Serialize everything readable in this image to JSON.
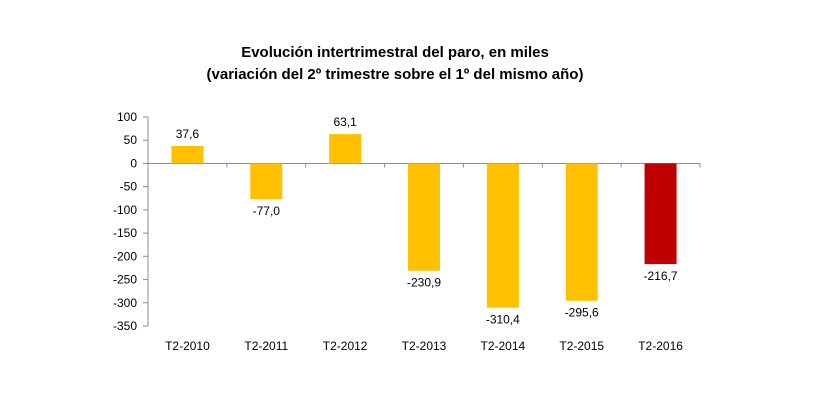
{
  "chart_data": {
    "type": "bar",
    "title": "Evolución intertrimestral del paro, en miles",
    "subtitle": "(variación del 2º trimestre  sobre el 1º del mismo año)",
    "categories": [
      "T2-2010",
      "T2-2011",
      "T2-2012",
      "T2-2013",
      "T2-2014",
      "T2-2015",
      "T2-2016"
    ],
    "values": [
      37.6,
      -77.0,
      63.1,
      -230.9,
      -310.4,
      -295.6,
      -216.7
    ],
    "value_labels": [
      "37,6",
      "-77,0",
      "63,1",
      "-230,9",
      "-310,4",
      "-295,6",
      "-216,7"
    ],
    "colors": [
      "#FFC000",
      "#FFC000",
      "#FFC000",
      "#FFC000",
      "#FFC000",
      "#FFC000",
      "#C00000"
    ],
    "xlabel": "",
    "ylabel": "",
    "ylim": [
      -350,
      100
    ],
    "yticks": [
      100,
      50,
      0,
      -50,
      -100,
      -150,
      -200,
      -250,
      -300,
      -350
    ],
    "ytick_labels": [
      "100",
      "50",
      "0",
      "-50",
      "-100",
      "-150",
      "-200",
      "-250",
      "-300",
      "-350"
    ],
    "grid": false,
    "legend": "none"
  }
}
